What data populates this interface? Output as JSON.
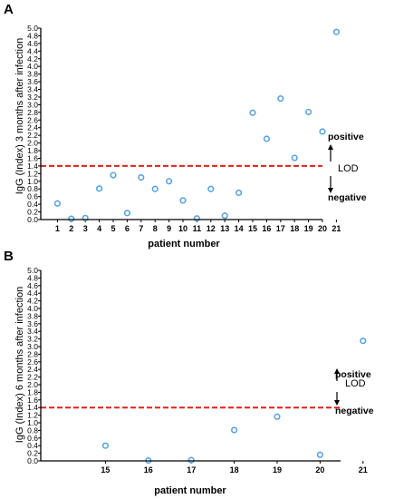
{
  "chart_data": [
    {
      "type": "scatter",
      "panel_label": "A",
      "ylabel": "IgG (Index) 3 months after infection",
      "xlabel": "patient number",
      "ylim": [
        0,
        5.0
      ],
      "ytick_step": 0.2,
      "x_categories": [
        "1",
        "2",
        "3",
        "4",
        "5",
        "6",
        "7",
        "8",
        "9",
        "10",
        "11",
        "12",
        "13",
        "14",
        "15",
        "16",
        "17",
        "18",
        "19",
        "20",
        "21"
      ],
      "values": [
        0.42,
        0.02,
        0.04,
        0.81,
        1.16,
        0.17,
        1.1,
        0.8,
        1.0,
        0.5,
        0.03,
        0.8,
        0.1,
        0.7,
        2.79,
        2.11,
        3.16,
        1.61,
        2.81,
        2.3,
        4.9
      ],
      "lod": 1.4,
      "annotations": {
        "positive": "positive",
        "lod": "LOD",
        "negative": "negative"
      },
      "grid": false,
      "marker_color": "#5ba3e0"
    },
    {
      "type": "scatter",
      "panel_label": "B",
      "ylabel": "IgG (Index) 6 months after infection",
      "xlabel": "patient number",
      "ylim": [
        0,
        5.0
      ],
      "ytick_step": 0.2,
      "x_categories": [
        "15",
        "16",
        "17",
        "18",
        "19",
        "20",
        "21"
      ],
      "values": [
        0.4,
        0.01,
        0.02,
        0.81,
        1.16,
        0.16,
        3.15
      ],
      "lod": 1.4,
      "annotations": {
        "positive": "positive",
        "lod": "LOD",
        "negative": "negative"
      },
      "grid": false,
      "marker_color": "#5ba3e0"
    }
  ],
  "colors": {
    "lod_line": "#e0201b",
    "marker_fill": "#ffffff",
    "axis": "#000000"
  }
}
